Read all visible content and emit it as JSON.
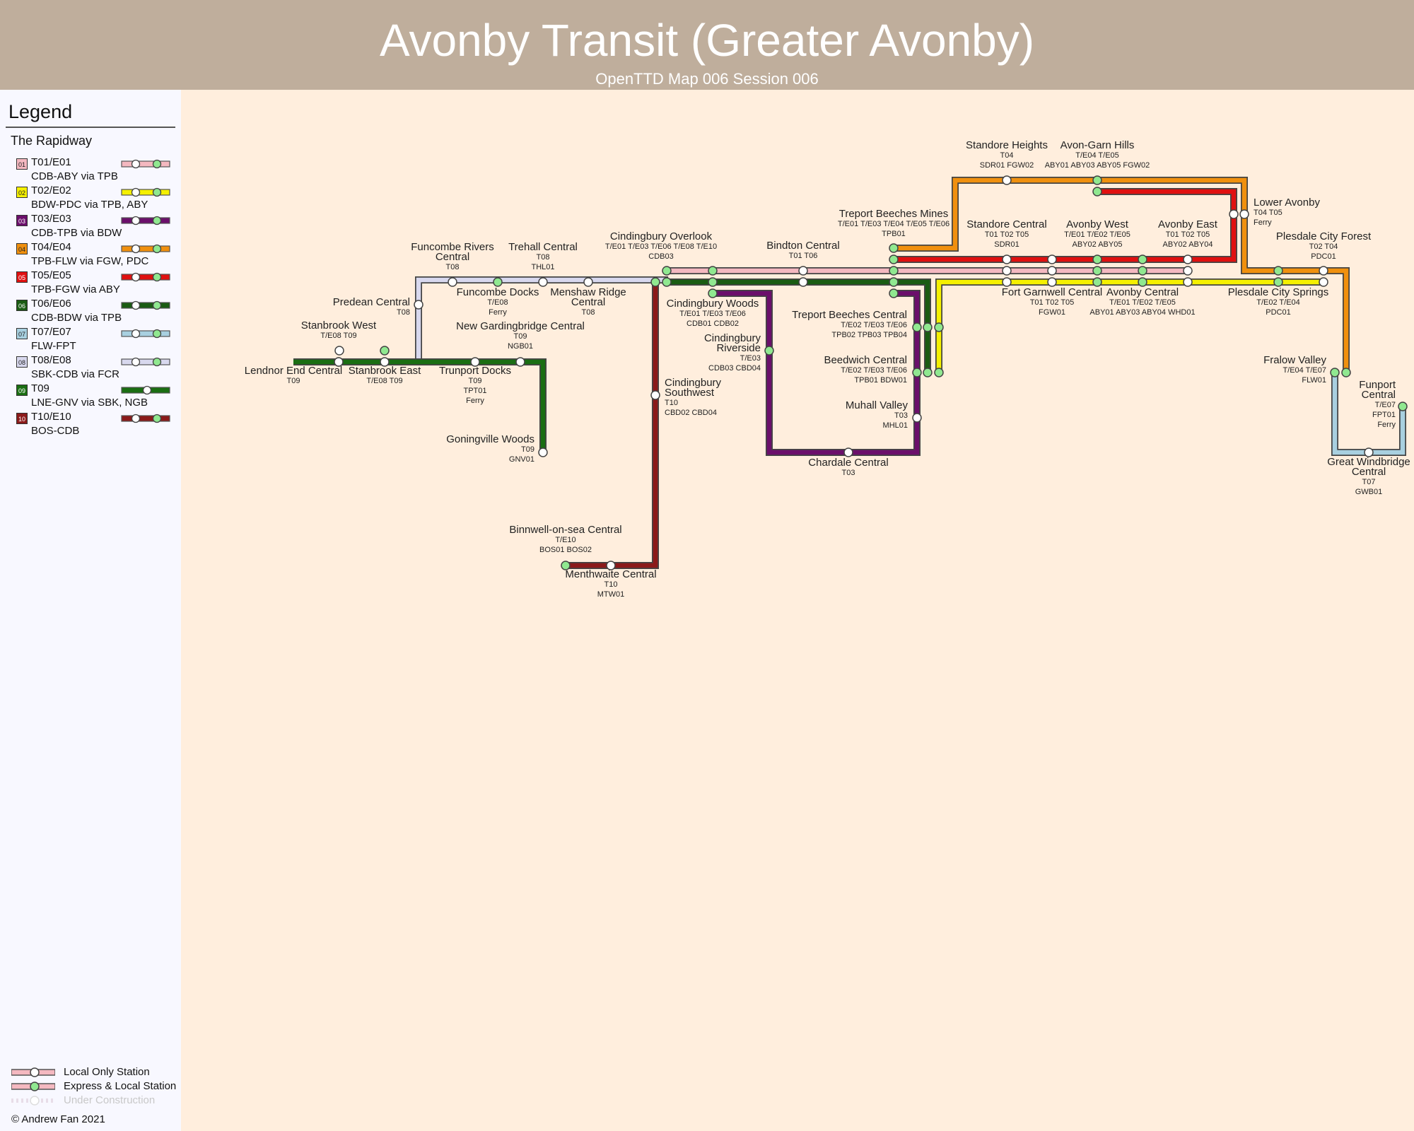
{
  "title": "Avonby Transit (Greater Avonby)",
  "subtitle": "OpenTTD Map 006 Session 006",
  "legend": {
    "title": "Legend",
    "group": "The Rapidway",
    "lines": [
      {
        "badge": "01",
        "code": "T01/E01",
        "desc": "CDB-ABY via TPB",
        "color": "#f4b8c0",
        "local": true
      },
      {
        "badge": "02",
        "code": "T02/E02",
        "desc": "BDW-PDC via TPB, ABY",
        "color": "#f5f000",
        "local": true
      },
      {
        "badge": "03",
        "code": "T03/E03",
        "desc": "CDB-TPB via BDW",
        "color": "#6b0f6b",
        "local": true
      },
      {
        "badge": "04",
        "code": "T04/E04",
        "desc": "TPB-FLW via FGW, PDC",
        "color": "#f0900e",
        "local": true
      },
      {
        "badge": "05",
        "code": "T05/E05",
        "desc": "TPB-FGW via ABY",
        "color": "#e01010",
        "local": true
      },
      {
        "badge": "06",
        "code": "T06/E06",
        "desc": "CDB-BDW via TPB",
        "color": "#1a5c12",
        "local": true
      },
      {
        "badge": "07",
        "code": "T07/E07",
        "desc": "FLW-FPT",
        "color": "#a8d0e0",
        "local": true
      },
      {
        "badge": "08",
        "code": "T08/E08",
        "desc": "SBK-CDB via FCR",
        "color": "#d8d8ee",
        "local": true
      },
      {
        "badge": "09",
        "code": "T09",
        "desc": "LNE-GNV via SBK, NGB",
        "color": "#1a6e12",
        "local": false
      },
      {
        "badge": "10",
        "code": "T10/E10",
        "desc": "BOS-CDB",
        "color": "#8b1a1a",
        "local": true
      }
    ],
    "keys": [
      "Local Only Station",
      "Express & Local Station",
      "Under Construction"
    ],
    "copyright": "© Andrew Fan 2021"
  },
  "colors": {
    "background": "#ffeedd",
    "header": "#bfae9c",
    "sidebar": "#f8f8ff",
    "express_station": "#90e890",
    "local_station": "#ffffff"
  },
  "stations": [
    {
      "id": "sdh",
      "name": [
        "Standore Heights"
      ],
      "codes": [
        "T04",
        "SDR01 FGW02"
      ]
    },
    {
      "id": "agh",
      "name": [
        "Avon-Garn Hills"
      ],
      "codes": [
        "T/E04 T/E05",
        "ABY01 ABY03 ABY05 FGW02"
      ]
    },
    {
      "id": "lav",
      "name": [
        "Lower Avonby"
      ],
      "codes": [
        "T04 T05",
        "Ferry"
      ]
    },
    {
      "id": "tbm",
      "name": [
        "Treport Beeches Mines"
      ],
      "codes": [
        "T/E01 T/E03 T/E04 T/E05 T/E06",
        "TPB01"
      ]
    },
    {
      "id": "sdc",
      "name": [
        "Standore Central"
      ],
      "codes": [
        "T01 T02 T05",
        "SDR01"
      ]
    },
    {
      "id": "avw",
      "name": [
        "Avonby West"
      ],
      "codes": [
        "T/E01 T/E02 T/E05",
        "ABY02 ABY05"
      ]
    },
    {
      "id": "ave",
      "name": [
        "Avonby East"
      ],
      "codes": [
        "T01 T02 T05",
        "ABY02 ABY04"
      ]
    },
    {
      "id": "pcf",
      "name": [
        "Plesdale City Forest"
      ],
      "codes": [
        "T02 T04",
        "PDC01"
      ]
    },
    {
      "id": "fcr",
      "name": [
        "Funcombe Rivers",
        "Central"
      ],
      "codes": [
        "T08"
      ]
    },
    {
      "id": "thc",
      "name": [
        "Trehall Central"
      ],
      "codes": [
        "T08",
        "THL01"
      ]
    },
    {
      "id": "cbo",
      "name": [
        "Cindingbury Overlook"
      ],
      "codes": [
        "T/E01 T/E03 T/E06 T/E08 T/E10",
        "CDB03"
      ]
    },
    {
      "id": "bdc",
      "name": [
        "Bindton Central"
      ],
      "codes": [
        "T01 T06"
      ]
    },
    {
      "id": "pdc",
      "name": [
        "Predean Central"
      ],
      "codes": [
        "T08"
      ]
    },
    {
      "id": "fcd",
      "name": [
        "Funcombe Docks"
      ],
      "codes": [
        "T/E08",
        "Ferry"
      ]
    },
    {
      "id": "mrc",
      "name": [
        "Menshaw Ridge",
        "Central"
      ],
      "codes": [
        "T08"
      ]
    },
    {
      "id": "fgc",
      "name": [
        "Fort Garnwell Central"
      ],
      "codes": [
        "T01 T02 T05",
        "FGW01"
      ]
    },
    {
      "id": "avc",
      "name": [
        "Avonby Central"
      ],
      "codes": [
        "T/E01 T/E02 T/E05",
        "ABY01 ABY03 ABY04 WHD01"
      ]
    },
    {
      "id": "pcs",
      "name": [
        "Plesdale City Springs"
      ],
      "codes": [
        "T/E02 T/E04",
        "PDC01"
      ]
    },
    {
      "id": "cbw",
      "name": [
        "Cindingbury Woods"
      ],
      "codes": [
        "T/E01 T/E03 T/E06",
        "CDB01 CDB02"
      ]
    },
    {
      "id": "tbc",
      "name": [
        "Treport Beeches Central"
      ],
      "codes": [
        "T/E02 T/E03 T/E06",
        "TPB02 TPB03 TPB04"
      ]
    },
    {
      "id": "sbw",
      "name": [
        "Stanbrook West"
      ],
      "codes": [
        "T/E08 T09"
      ]
    },
    {
      "id": "ngc",
      "name": [
        "New Gardingbridge Central"
      ],
      "codes": [
        "T09",
        "NGB01"
      ]
    },
    {
      "id": "cbr",
      "name": [
        "Cindingbury",
        "Riverside"
      ],
      "codes": [
        "T/E03",
        "CDB03 CBD04"
      ]
    },
    {
      "id": "bwc",
      "name": [
        "Beedwich Central"
      ],
      "codes": [
        "T/E02 T/E03 T/E06",
        "TPB01 BDW01"
      ]
    },
    {
      "id": "fvl",
      "name": [
        "Fralow Valley"
      ],
      "codes": [
        "T/E04 T/E07",
        "FLW01"
      ]
    },
    {
      "id": "lec",
      "name": [
        "Lendnor End Central"
      ],
      "codes": [
        "T09"
      ]
    },
    {
      "id": "sbe",
      "name": [
        "Stanbrook East"
      ],
      "codes": [
        "T/E08 T09"
      ]
    },
    {
      "id": "tpd",
      "name": [
        "Trunport Docks"
      ],
      "codes": [
        "T09",
        "TPT01",
        "Ferry"
      ]
    },
    {
      "id": "cbs",
      "name": [
        "Cindingbury",
        "Southwest"
      ],
      "codes": [
        "T10",
        "CBD02 CBD04"
      ]
    },
    {
      "id": "fpc",
      "name": [
        "Funport",
        "Central"
      ],
      "codes": [
        "T/E07",
        "FPT01",
        "Ferry"
      ]
    },
    {
      "id": "mhv",
      "name": [
        "Muhall Valley"
      ],
      "codes": [
        "T03",
        "MHL01"
      ]
    },
    {
      "id": "gvw",
      "name": [
        "Goningville Woods"
      ],
      "codes": [
        "T09",
        "GNV01"
      ]
    },
    {
      "id": "chc",
      "name": [
        "Chardale Central"
      ],
      "codes": [
        "T03"
      ]
    },
    {
      "id": "gwc",
      "name": [
        "Great Windbridge",
        "Central"
      ],
      "codes": [
        "T07",
        "GWB01"
      ]
    },
    {
      "id": "boc",
      "name": [
        "Binnwell-on-sea Central"
      ],
      "codes": [
        "T/E10",
        "BOS01 BOS02"
      ]
    },
    {
      "id": "mwc",
      "name": [
        "Menthwaite Central"
      ],
      "codes": [
        "T10",
        "MTW01"
      ]
    }
  ]
}
